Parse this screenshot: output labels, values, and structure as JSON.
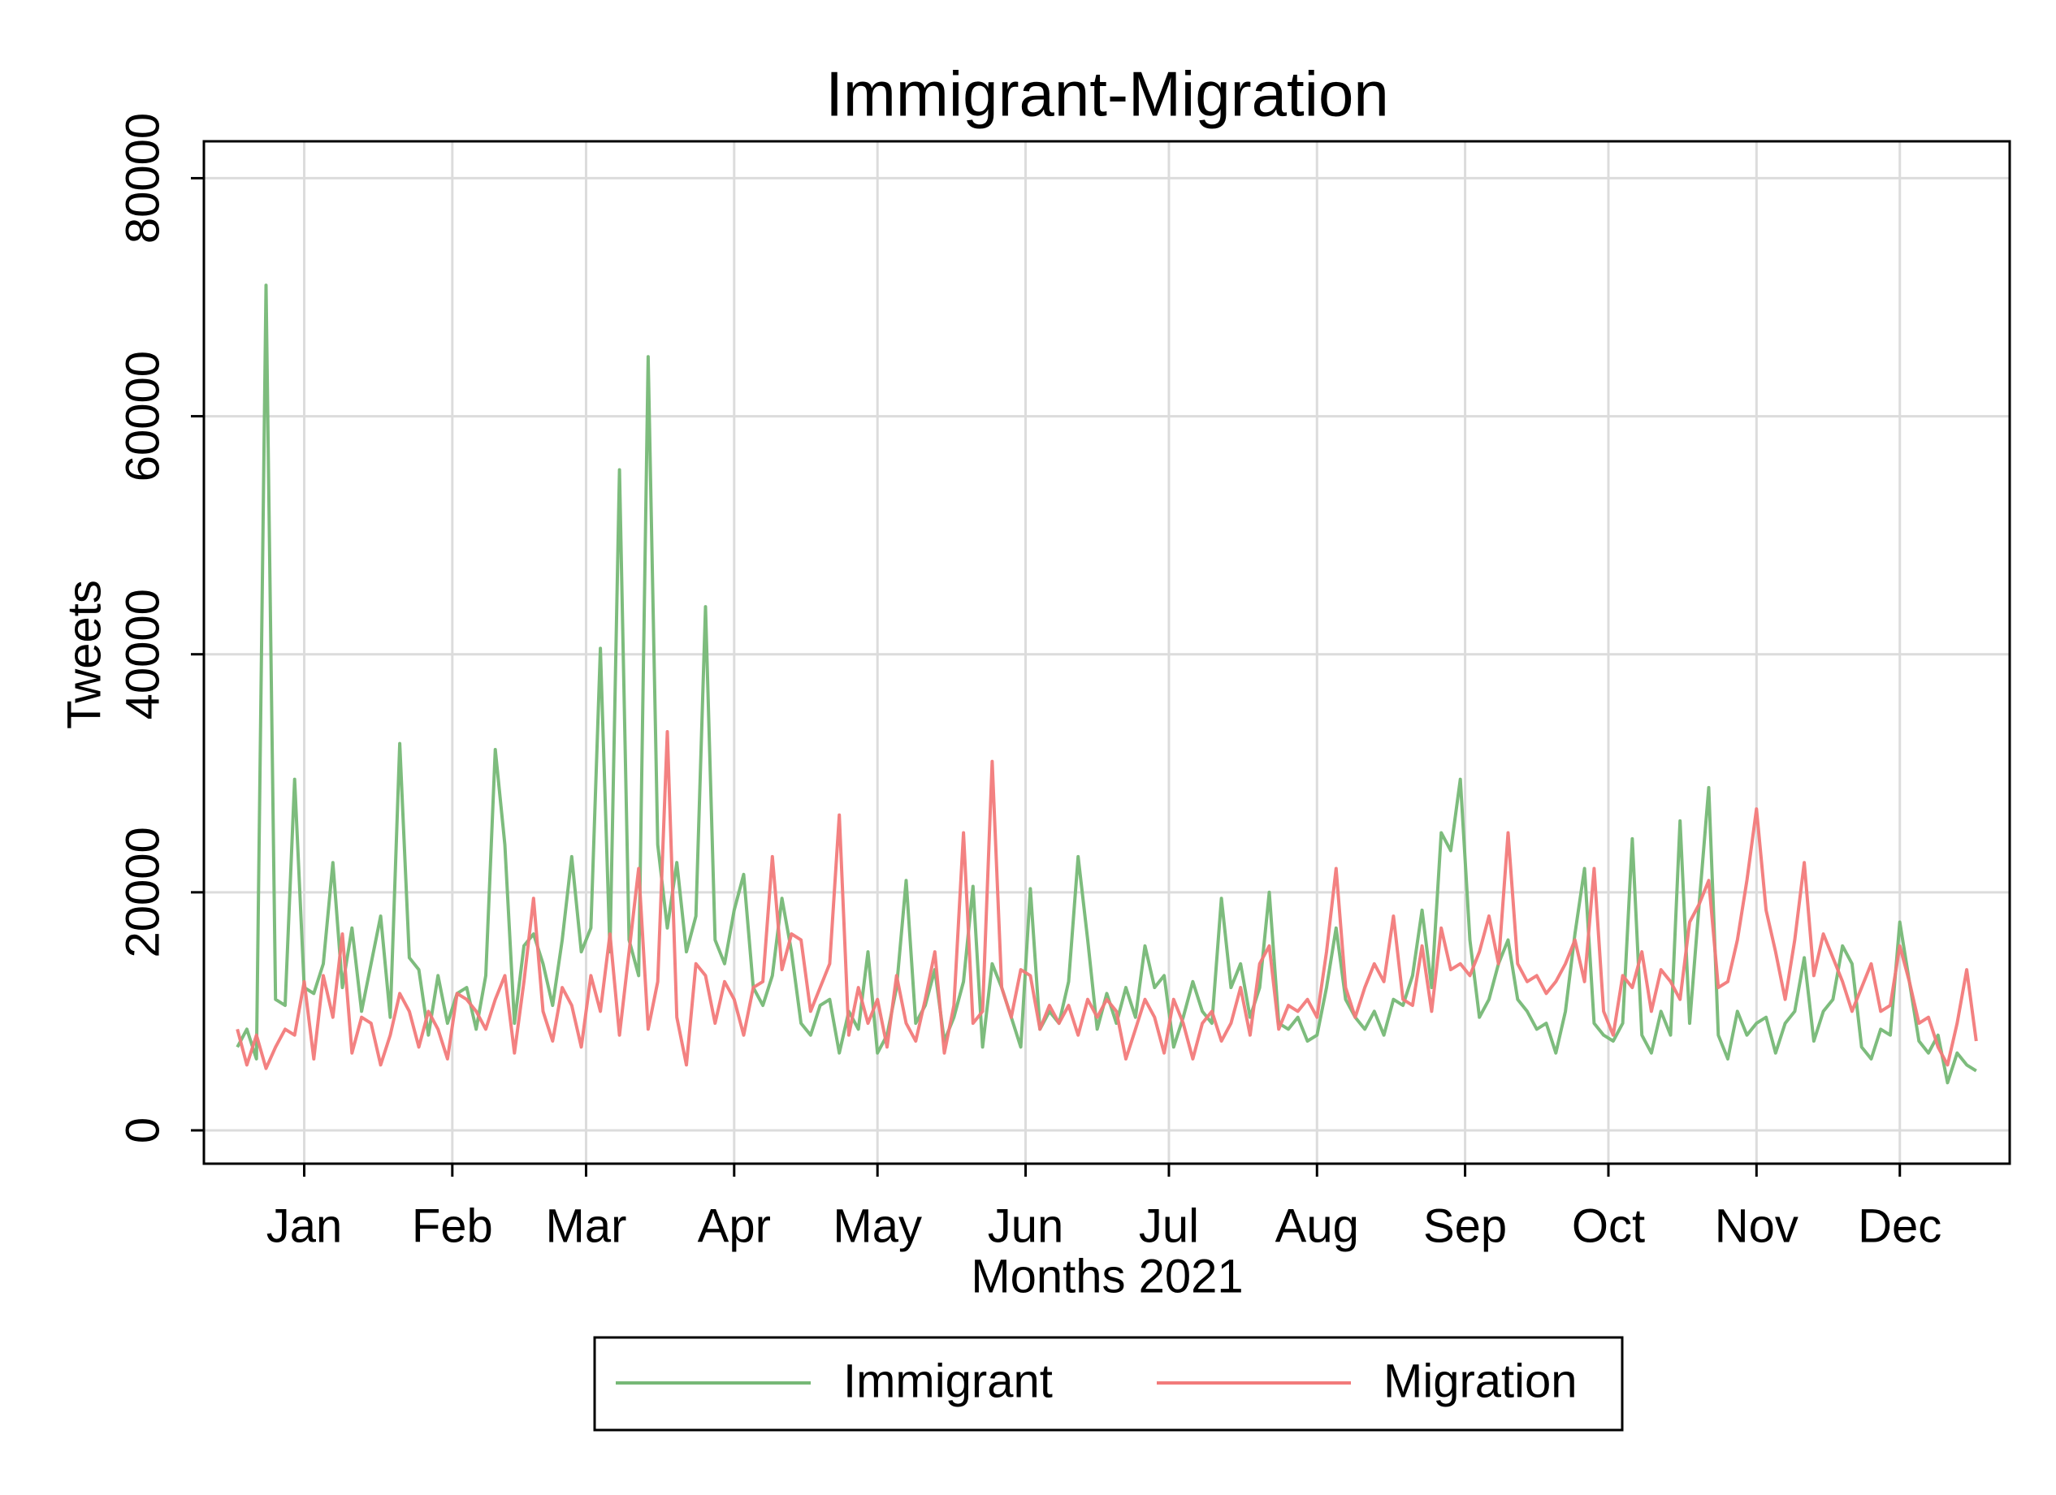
{
  "chart_data": {
    "type": "line",
    "title": "Immigrant-Migration",
    "x_label": "Months 2021",
    "y_label": "Tweets",
    "xlim": [
      -21,
      357
    ],
    "xticks": [
      {
        "value": 0,
        "label": "Jan"
      },
      {
        "value": 31,
        "label": "Feb"
      },
      {
        "value": 59,
        "label": "Mar"
      },
      {
        "value": 90,
        "label": "Apr"
      },
      {
        "value": 120,
        "label": "May"
      },
      {
        "value": 151,
        "label": "Jun"
      },
      {
        "value": 181,
        "label": "Jul"
      },
      {
        "value": 212,
        "label": "Aug"
      },
      {
        "value": 243,
        "label": "Sep"
      },
      {
        "value": 273,
        "label": "Oct"
      },
      {
        "value": 304,
        "label": "Nov"
      },
      {
        "value": 334,
        "label": "Dec"
      }
    ],
    "ylim": [
      -2800,
      83100
    ],
    "yticks": [
      0,
      20000,
      40000,
      60000,
      80000
    ],
    "grid": true,
    "legend": "bottom",
    "x": [
      -14,
      -12,
      -10,
      -8,
      -6,
      -4,
      -2,
      0,
      2,
      4,
      6,
      8,
      10,
      12,
      14,
      16,
      18,
      20,
      22,
      24,
      26,
      28,
      30,
      32,
      34,
      36,
      38,
      40,
      42,
      44,
      46,
      48,
      50,
      52,
      54,
      56,
      58,
      60,
      62,
      64,
      66,
      68,
      70,
      72,
      74,
      76,
      78,
      80,
      82,
      84,
      86,
      88,
      90,
      92,
      94,
      96,
      98,
      100,
      102,
      104,
      106,
      108,
      110,
      112,
      114,
      116,
      118,
      120,
      122,
      124,
      126,
      128,
      130,
      132,
      134,
      136,
      138,
      140,
      142,
      144,
      146,
      148,
      150,
      152,
      154,
      156,
      158,
      160,
      162,
      164,
      166,
      168,
      170,
      172,
      174,
      176,
      178,
      180,
      182,
      184,
      186,
      188,
      190,
      192,
      194,
      196,
      198,
      200,
      202,
      204,
      206,
      208,
      210,
      212,
      214,
      216,
      218,
      220,
      222,
      224,
      226,
      228,
      230,
      232,
      234,
      236,
      238,
      240,
      242,
      244,
      246,
      248,
      250,
      252,
      254,
      256,
      258,
      260,
      262,
      264,
      266,
      268,
      270,
      272,
      274,
      276,
      278,
      280,
      282,
      284,
      286,
      288,
      290,
      292,
      294,
      296,
      298,
      300,
      302,
      304,
      306,
      308,
      310,
      312,
      314,
      316,
      318,
      320,
      322,
      324,
      326,
      328,
      330,
      332,
      334,
      336,
      338,
      340,
      342,
      344,
      346,
      348,
      350
    ],
    "series": [
      {
        "name": "Immigrant",
        "color": "#76b876",
        "values": [
          7000,
          8500,
          6000,
          71000,
          11000,
          10500,
          29500,
          12000,
          11500,
          14000,
          22500,
          12000,
          17000,
          10000,
          14000,
          18000,
          9500,
          32500,
          14500,
          13500,
          8000,
          13000,
          9000,
          11500,
          12000,
          8500,
          13000,
          32000,
          24000,
          9000,
          15500,
          16500,
          14000,
          10500,
          16000,
          23000,
          15000,
          17000,
          40500,
          15000,
          55500,
          16000,
          13000,
          65000,
          24000,
          17000,
          22500,
          15000,
          18000,
          44000,
          16000,
          14000,
          18500,
          21500,
          12000,
          10500,
          13000,
          19500,
          15000,
          9000,
          8000,
          10500,
          11000,
          6500,
          10000,
          8500,
          15000,
          6500,
          8000,
          12000,
          21000,
          9000,
          10500,
          13500,
          7500,
          9500,
          12500,
          20500,
          7000,
          14000,
          12000,
          9500,
          7000,
          20300,
          8500,
          10000,
          9000,
          12500,
          23000,
          16000,
          8500,
          11500,
          9000,
          12000,
          9500,
          15500,
          12000,
          13000,
          7000,
          9500,
          12500,
          10000,
          9000,
          19500,
          12000,
          14000,
          9500,
          12000,
          20000,
          9000,
          8500,
          9500,
          7500,
          8000,
          12000,
          17000,
          11000,
          9500,
          8500,
          10000,
          8000,
          11000,
          10500,
          13000,
          18500,
          12000,
          25000,
          23500,
          29500,
          16000,
          9500,
          11000,
          14000,
          16000,
          11000,
          10000,
          8500,
          9000,
          6500,
          10000,
          16500,
          22000,
          9000,
          8000,
          7500,
          9000,
          24500,
          8000,
          6500,
          10000,
          8000,
          26000,
          9000,
          19000,
          28800,
          8000,
          6000,
          10000,
          8000,
          9000,
          9500,
          6500,
          9000,
          10000,
          14500,
          7500,
          10000,
          11000,
          15500,
          14000,
          7000,
          6000,
          8500,
          8000,
          17500,
          12500,
          7500,
          6500,
          8000,
          4000,
          6500,
          5500,
          5000
        ]
      },
      {
        "name": "Migration",
        "color": "#f27a7a",
        "values": [
          8500,
          5500,
          8000,
          5200,
          7000,
          8500,
          8000,
          12500,
          6000,
          13000,
          9500,
          16500,
          6500,
          9500,
          9000,
          5500,
          8000,
          11500,
          10000,
          7000,
          10000,
          8500,
          6000,
          11500,
          11000,
          10000,
          8500,
          11000,
          13000,
          6500,
          12500,
          19500,
          10000,
          7500,
          12000,
          10500,
          7000,
          13000,
          10000,
          16500,
          8000,
          15000,
          22000,
          8500,
          12500,
          33500,
          9500,
          5500,
          14000,
          13000,
          9000,
          12500,
          11000,
          8000,
          12000,
          12500,
          23000,
          13500,
          16500,
          16000,
          10000,
          12000,
          14000,
          26500,
          8000,
          12000,
          9000,
          11000,
          7000,
          13000,
          9000,
          7500,
          11000,
          15000,
          6500,
          10500,
          25000,
          9000,
          10000,
          31000,
          12000,
          9500,
          13500,
          13000,
          8500,
          10500,
          9000,
          10500,
          8000,
          11000,
          9500,
          11000,
          10000,
          6000,
          8500,
          11000,
          9500,
          6500,
          11000,
          9000,
          6000,
          9000,
          10000,
          7500,
          9000,
          12000,
          8000,
          14000,
          15500,
          8500,
          10500,
          10000,
          11000,
          9500,
          15000,
          22000,
          12000,
          9500,
          12000,
          14000,
          12500,
          18000,
          11000,
          10500,
          15500,
          10000,
          17000,
          13500,
          14000,
          13000,
          15000,
          18000,
          14000,
          25000,
          14000,
          12500,
          13000,
          11500,
          12500,
          14000,
          16000,
          12500,
          22000,
          10000,
          8000,
          13000,
          12000,
          15000,
          10000,
          13500,
          12500,
          11000,
          17500,
          19000,
          21000,
          12000,
          12500,
          16000,
          21000,
          27000,
          18500,
          15000,
          11000,
          16000,
          22500,
          13000,
          16500,
          14500,
          12500,
          10000,
          12000,
          14000,
          10000,
          10500,
          15500,
          12500,
          9000,
          9500,
          7000,
          5500,
          9000,
          13500,
          7500
        ]
      }
    ]
  }
}
